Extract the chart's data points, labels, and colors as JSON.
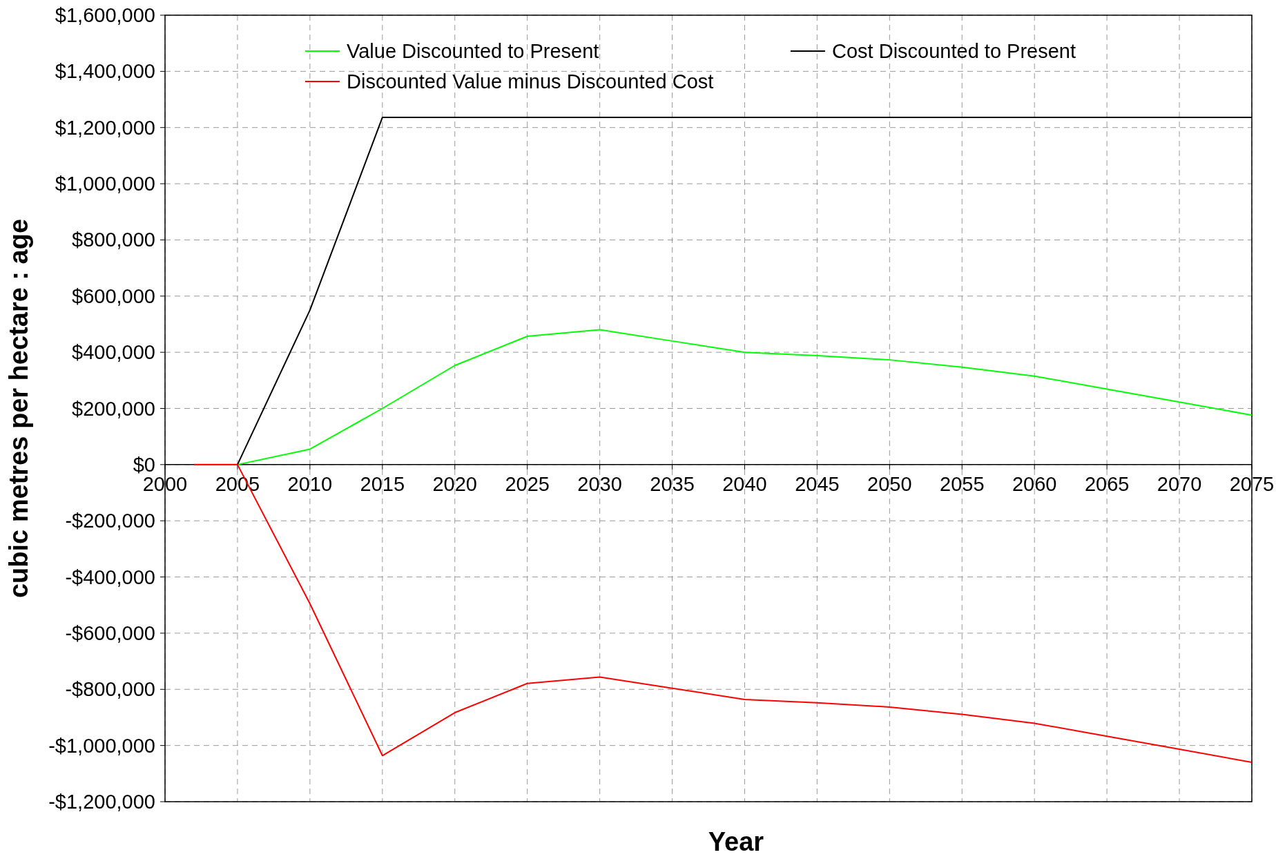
{
  "chart_data": {
    "type": "line",
    "xlabel": "Year",
    "ylabel": "cubic metres per hectare : age",
    "xlim": [
      2000,
      2075
    ],
    "xticks": [
      2000,
      2005,
      2010,
      2015,
      2020,
      2025,
      2030,
      2035,
      2040,
      2045,
      2050,
      2055,
      2060,
      2065,
      2070,
      2075
    ],
    "ylim": [
      -1200000,
      1600000
    ],
    "yticks": [
      {
        "value": -1200000,
        "label": "-$1,200,000"
      },
      {
        "value": -1000000,
        "label": "-$1,000,000"
      },
      {
        "value": -800000,
        "label": "-$800,000"
      },
      {
        "value": -600000,
        "label": "-$600,000"
      },
      {
        "value": -400000,
        "label": "-$400,000"
      },
      {
        "value": -200000,
        "label": "-$200,000"
      },
      {
        "value": 0,
        "label": "$0"
      },
      {
        "value": 200000,
        "label": "$200,000"
      },
      {
        "value": 400000,
        "label": "$400,000"
      },
      {
        "value": 600000,
        "label": "$600,000"
      },
      {
        "value": 800000,
        "label": "$800,000"
      },
      {
        "value": 1000000,
        "label": "$1,000,000"
      },
      {
        "value": 1200000,
        "label": "$1,200,000"
      },
      {
        "value": 1400000,
        "label": "$1,400,000"
      },
      {
        "value": 1600000,
        "label": "$1,600,000"
      }
    ],
    "grid": true,
    "legend": "top",
    "marker": "none",
    "line_style": "solid",
    "series": [
      {
        "name": "Value Discounted to Present",
        "color": "#00ff00",
        "x": [
          2005,
          2010,
          2015,
          2020,
          2025,
          2030,
          2035,
          2040,
          2045,
          2050,
          2055,
          2060,
          2065,
          2070,
          2075
        ],
        "values": [
          0,
          55000,
          200000,
          353000,
          457000,
          480000,
          440000,
          400000,
          388000,
          373000,
          347000,
          315000,
          269000,
          223000,
          176000
        ]
      },
      {
        "name": "Cost Discounted to Present",
        "color": "#000000",
        "x": [
          2005,
          2010,
          2015,
          2020,
          2025,
          2030,
          2035,
          2040,
          2045,
          2050,
          2055,
          2060,
          2065,
          2070,
          2075
        ],
        "values": [
          0,
          550000,
          1236000,
          1236000,
          1236000,
          1236000,
          1236000,
          1236000,
          1236000,
          1236000,
          1236000,
          1236000,
          1236000,
          1236000,
          1236000
        ]
      },
      {
        "name": "Discounted Value minus Discounted Cost",
        "color": "#ff0000",
        "x": [
          2002,
          2005,
          2010,
          2015,
          2020,
          2025,
          2030,
          2035,
          2040,
          2045,
          2050,
          2055,
          2060,
          2065,
          2070,
          2075
        ],
        "values": [
          0,
          0,
          -495000,
          -1036000,
          -883000,
          -779000,
          -756000,
          -796000,
          -836000,
          -848000,
          -863000,
          -889000,
          -921000,
          -967000,
          -1013000,
          -1060000
        ]
      }
    ]
  }
}
